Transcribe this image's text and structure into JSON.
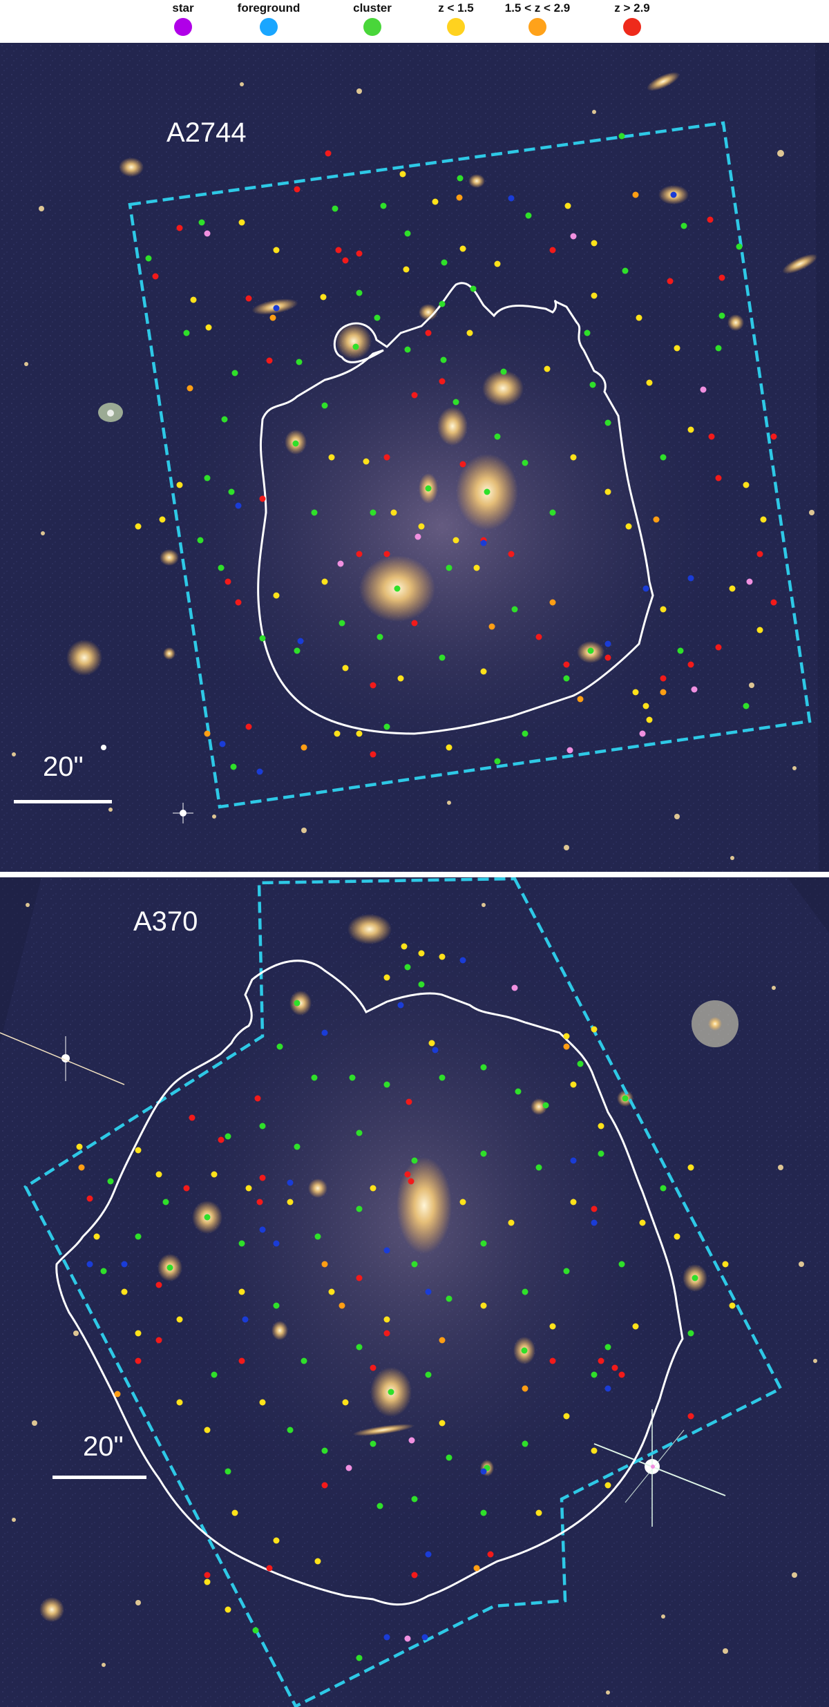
{
  "legend": {
    "items": [
      {
        "label": "star",
        "color": "#b000e8"
      },
      {
        "label": "foreground",
        "color": "#1aa6ff"
      },
      {
        "label": "cluster",
        "color": "#49d63a"
      },
      {
        "label": "z < 1.5",
        "color": "#ffd21f"
      },
      {
        "label": "1.5 < z < 2.9",
        "color": "#ffa21a"
      },
      {
        "label": "z > 2.9",
        "color": "#ee2a1b"
      }
    ]
  },
  "panels": {
    "top": {
      "cluster_name": "A2744",
      "scale_bar_label": "20\""
    },
    "bottom": {
      "cluster_name": "A370",
      "scale_bar_label": "20\""
    }
  },
  "colors": {
    "sky_background": "#23264f",
    "footprint_outline": "#2ec9e6",
    "contour_outline": "#ffffff",
    "galaxy_glow": "#ffd88a",
    "marker_star": "#f090e0",
    "marker_foreground": "#1a3cd6",
    "marker_cluster": "#2fe02a",
    "marker_low_z": "#ffe21a",
    "marker_mid_z": "#ff9e14",
    "marker_high_z": "#f21a1a"
  }
}
